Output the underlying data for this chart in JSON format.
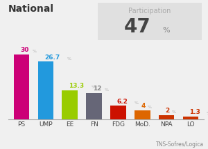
{
  "title": "National",
  "categories": [
    "PS",
    "UMP",
    "EE",
    "FN",
    "FDG",
    "MoD.",
    "NPA",
    "LO"
  ],
  "values": [
    30,
    26.7,
    13.3,
    12,
    6.2,
    4,
    2,
    1.3
  ],
  "bar_colors": [
    "#cc0077",
    "#2299dd",
    "#99cc00",
    "#666677",
    "#cc1100",
    "#dd6600",
    "#cc3300",
    "#cc3300"
  ],
  "value_colors": [
    "#cc0077",
    "#2299dd",
    "#99cc00",
    "#888888",
    "#cc1100",
    "#dd6600",
    "#cc3300",
    "#cc3300"
  ],
  "participation": "47",
  "participation_label": "Participation",
  "source": "TNS-Sofres/Logica",
  "bg_color": "#f0f0f0",
  "box_color": "#e0e0e0",
  "ylim": [
    0,
    36
  ]
}
